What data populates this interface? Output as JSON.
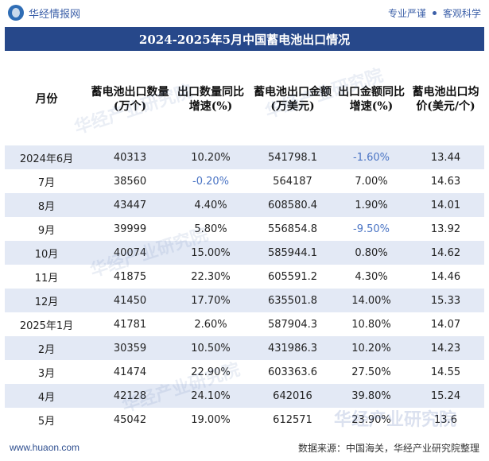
{
  "header": {
    "brand": "华经情报网",
    "slogan_left": "专业严谨",
    "slogan_right": "客观科学"
  },
  "title": "2024-2025年5月中国蓄电池出口情况",
  "table": {
    "columns": [
      "月份",
      "蓄电池出口数量(万个)",
      "出口数量同比增速(%)",
      "蓄电池出口金额(万美元)",
      "出口金额同比增速(%)",
      "蓄电池出口均价(美元/个)"
    ],
    "rows": [
      {
        "month": "2024年6月",
        "qty": "40313",
        "qty_yoy": "10.20%",
        "amount": "541798.1",
        "amt_yoy": "-1.60%",
        "price": "13.44"
      },
      {
        "month": "7月",
        "qty": "38560",
        "qty_yoy": "-0.20%",
        "amount": "564187",
        "amt_yoy": "7.00%",
        "price": "14.63"
      },
      {
        "month": "8月",
        "qty": "43447",
        "qty_yoy": "4.40%",
        "amount": "608580.4",
        "amt_yoy": "1.90%",
        "price": "14.01"
      },
      {
        "month": "9月",
        "qty": "39999",
        "qty_yoy": "5.80%",
        "amount": "556854.8",
        "amt_yoy": "-9.50%",
        "price": "13.92"
      },
      {
        "month": "10月",
        "qty": "40074",
        "qty_yoy": "15.00%",
        "amount": "585944.1",
        "amt_yoy": "0.80%",
        "price": "14.62"
      },
      {
        "month": "11月",
        "qty": "41875",
        "qty_yoy": "22.30%",
        "amount": "605591.2",
        "amt_yoy": "4.30%",
        "price": "14.46"
      },
      {
        "month": "12月",
        "qty": "41450",
        "qty_yoy": "17.70%",
        "amount": "635501.8",
        "amt_yoy": "14.00%",
        "price": "15.33"
      },
      {
        "month": "2025年1月",
        "qty": "41781",
        "qty_yoy": "2.60%",
        "amount": "587904.3",
        "amt_yoy": "10.80%",
        "price": "14.07"
      },
      {
        "month": "2月",
        "qty": "30359",
        "qty_yoy": "10.50%",
        "amount": "431986.3",
        "amt_yoy": "10.20%",
        "price": "14.23"
      },
      {
        "month": "3月",
        "qty": "41474",
        "qty_yoy": "22.90%",
        "amount": "603363.6",
        "amt_yoy": "27.50%",
        "price": "14.55"
      },
      {
        "month": "4月",
        "qty": "42128",
        "qty_yoy": "24.10%",
        "amount": "642016",
        "amt_yoy": "39.80%",
        "price": "15.24"
      },
      {
        "month": "5月",
        "qty": "45042",
        "qty_yoy": "19.00%",
        "amount": "612571",
        "amt_yoy": "23.90%",
        "price": "13.6"
      }
    ]
  },
  "watermark": "华经产业研究院",
  "footer": {
    "website": "www.huaon.com",
    "source": "数据来源：中国海关，华经产业研究院整理"
  },
  "colors": {
    "title_bg": "#27488a",
    "stripe": "#e3e9f5",
    "negative": "#4a74c4"
  }
}
